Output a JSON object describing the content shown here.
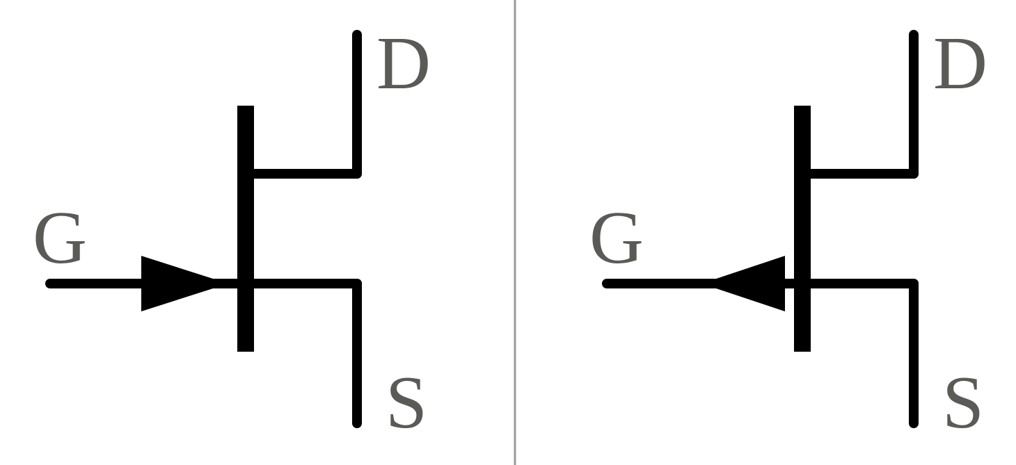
{
  "symbols": [
    {
      "variant": "n-channel",
      "arrow_direction": "inward",
      "labels": {
        "drain": "D",
        "gate": "G",
        "source": "S"
      }
    },
    {
      "variant": "p-channel",
      "arrow_direction": "outward",
      "labels": {
        "drain": "D",
        "gate": "G",
        "source": "S"
      }
    }
  ],
  "colors": {
    "symbol": "#000000",
    "label": "#5a5a57",
    "divider": "#9a9a9a",
    "background": "#ffffff"
  }
}
